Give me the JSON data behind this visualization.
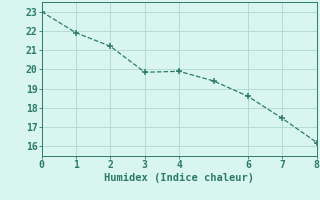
{
  "x": [
    0,
    1,
    2,
    3,
    4,
    5,
    6,
    7,
    8
  ],
  "y": [
    23.0,
    21.9,
    21.2,
    19.85,
    19.9,
    19.4,
    18.6,
    17.45,
    16.2
  ],
  "line_color": "#2d7a6a",
  "marker_color": "#2d7a6a",
  "bg_color": "#d8f5ef",
  "grid_color": "#aed8cf",
  "axis_color": "#2d7a6a",
  "xlabel": "Humidex (Indice chaleur)",
  "xlabel_fontsize": 7.5,
  "tick_fontsize": 7,
  "xlim": [
    0,
    8
  ],
  "ylim": [
    15.5,
    23.5
  ],
  "yticks": [
    16,
    17,
    18,
    19,
    20,
    21,
    22,
    23
  ],
  "xticks": [
    0,
    1,
    2,
    3,
    4,
    6,
    7,
    8
  ]
}
